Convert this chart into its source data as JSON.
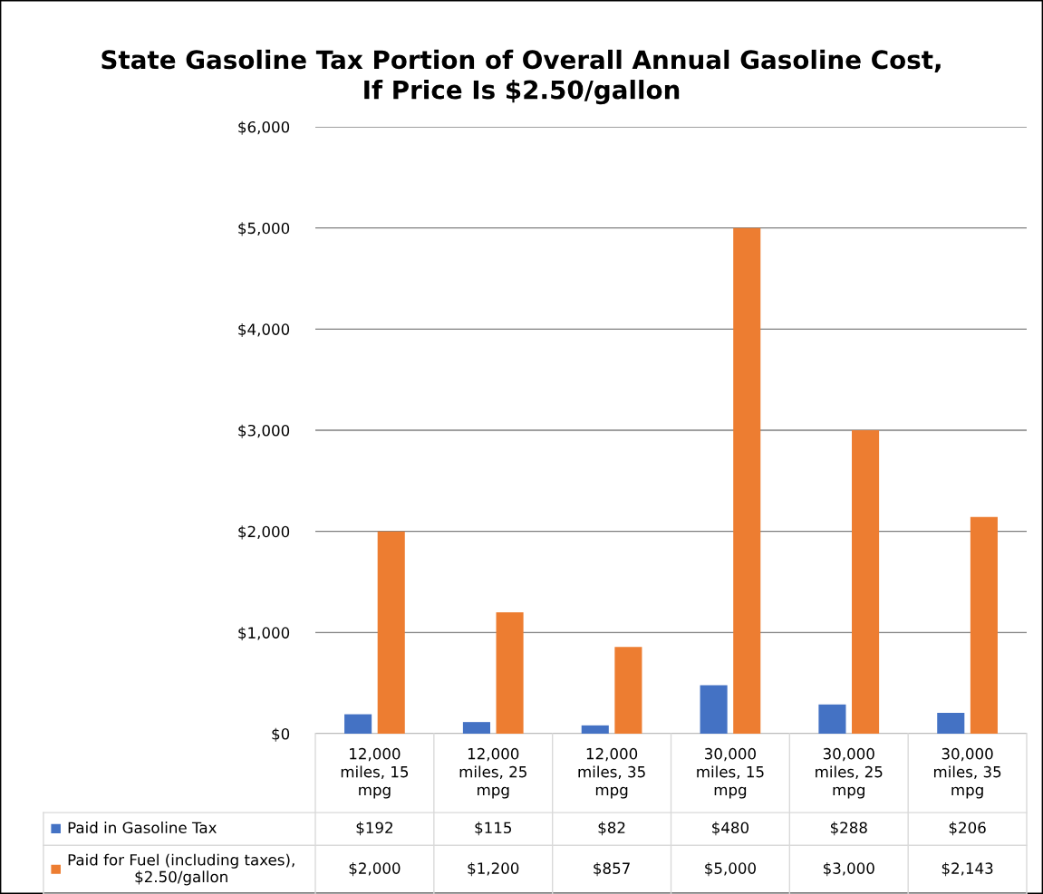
{
  "chart_data": {
    "type": "bar",
    "title": "State Gasoline Tax Portion of Overall Annual Gasoline Cost,\nIf Price Is $2.50/gallon",
    "categories": [
      "12,000 miles, 15 mpg",
      "12,000 miles, 25 mpg",
      "12,000 miles, 35 mpg",
      "30,000 miles, 15 mpg",
      "30,000 miles, 25 mpg",
      "30,000 miles, 35 mpg"
    ],
    "series": [
      {
        "name": "Paid in Gasoline Tax",
        "color": "#4472c4",
        "values": [
          192,
          115,
          82,
          480,
          288,
          206
        ],
        "value_labels": [
          "$192",
          "$115",
          "$82",
          "$480",
          "$288",
          "$206"
        ]
      },
      {
        "name": "Paid for Fuel (including taxes), $2.50/gallon",
        "color": "#ed7d31",
        "values": [
          2000,
          1200,
          857,
          5000,
          3000,
          2143
        ],
        "value_labels": [
          "$2,000",
          "$1,200",
          "$857",
          "$5,000",
          "$3,000",
          "$2,143"
        ]
      }
    ],
    "ylim": [
      0,
      6000
    ],
    "yticks": [
      {
        "value": 0,
        "label": "$0"
      },
      {
        "value": 1000,
        "label": "$1,000"
      },
      {
        "value": 2000,
        "label": "$2,000"
      },
      {
        "value": 3000,
        "label": "$3,000"
      },
      {
        "value": 4000,
        "label": "$4,000"
      },
      {
        "value": 5000,
        "label": "$5,000"
      },
      {
        "value": 6000,
        "label": "$6,000"
      }
    ],
    "grid": "y",
    "legend": "bottom"
  }
}
